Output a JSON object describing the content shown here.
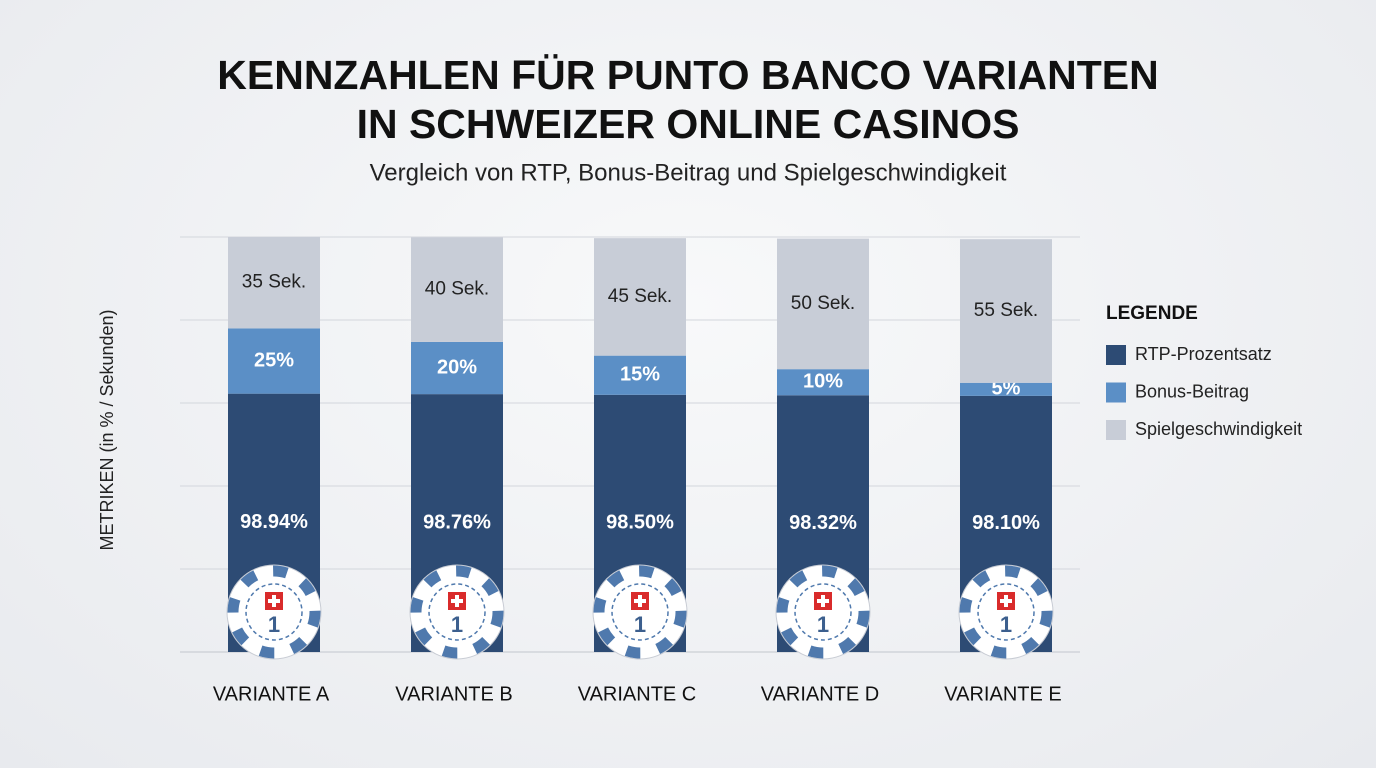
{
  "chart_data": {
    "type": "stacked_bar",
    "title": [
      "KENNZAHLEN FÜR PUNTO BANCO VARIANTEN",
      "IN SCHWEIZER ONLINE CASINOS"
    ],
    "subtitle": "Vergleich von RTP, Bonus-Beitrag und Spielgeschwindigkeit",
    "y_label": "METRIKEN (in % / Sekunden)",
    "legend_title": "LEGENDE",
    "legend_position": "right",
    "chip_label": "1",
    "categories": [
      "VARIANTE A",
      "VARIANTE B",
      "VARIANTE C",
      "VARIANTE D",
      "VARIANTE E"
    ],
    "series": [
      {
        "name": "RTP-Prozentsatz",
        "color": "#2d4b74",
        "values": [
          98.94,
          98.76,
          98.5,
          98.32,
          98.1
        ],
        "value_labels": [
          "98.94%",
          "98.76%",
          "98.50%",
          "98.32%",
          "98.10%"
        ]
      },
      {
        "name": "Bonus-Beitrag",
        "color": "#5b8fc6",
        "values": [
          25,
          20,
          15,
          10,
          5
        ],
        "value_labels": [
          "25%",
          "20%",
          "15%",
          "10%",
          "5%"
        ]
      },
      {
        "name": "Spielgeschwindigkeit",
        "color": "#c8cdd7",
        "values": [
          35,
          40,
          45,
          50,
          55
        ],
        "value_labels": [
          "35 Sek.",
          "40 Sek.",
          "45 Sek.",
          "50 Sek.",
          "55 Sek."
        ]
      }
    ]
  }
}
